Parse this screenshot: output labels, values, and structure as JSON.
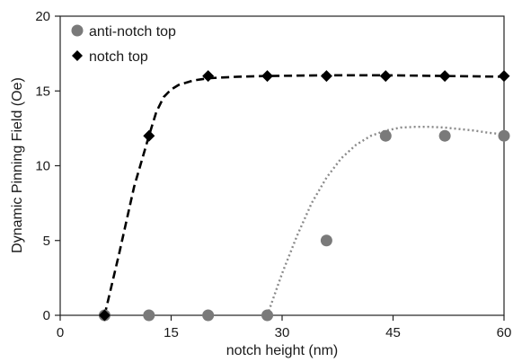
{
  "chart_data": {
    "type": "scatter",
    "title": "",
    "xlabel": "notch height (nm)",
    "ylabel": "Dynamic Pinning Field (Oe)",
    "xlim": [
      0,
      60
    ],
    "ylim": [
      0,
      20
    ],
    "x_ticks": [
      0,
      15,
      30,
      45,
      60
    ],
    "y_ticks": [
      0,
      5,
      10,
      15,
      20
    ],
    "grid": false,
    "legend_position": "top-left",
    "series": [
      {
        "name": "anti-notch top",
        "marker": "circle",
        "color": "#7a7a7a",
        "points": [
          [
            6,
            0
          ],
          [
            12,
            0
          ],
          [
            20,
            0
          ],
          [
            28,
            0
          ],
          [
            36,
            5
          ],
          [
            44,
            12
          ],
          [
            52,
            12
          ],
          [
            60,
            12
          ]
        ],
        "fit_line": {
          "style": "dotted",
          "color": "#8a8a8a",
          "points": [
            [
              28,
              0
            ],
            [
              30,
              2.8
            ],
            [
              32,
              5.3
            ],
            [
              34,
              7.5
            ],
            [
              36,
              9.2
            ],
            [
              38,
              10.5
            ],
            [
              40,
              11.4
            ],
            [
              42,
              12.0
            ],
            [
              44,
              12.35
            ],
            [
              46,
              12.55
            ],
            [
              48,
              12.6
            ],
            [
              50,
              12.6
            ],
            [
              52,
              12.55
            ],
            [
              54,
              12.45
            ],
            [
              56,
              12.35
            ],
            [
              58,
              12.2
            ],
            [
              60,
              12.1
            ]
          ]
        }
      },
      {
        "name": "notch top",
        "marker": "diamond",
        "color": "#000000",
        "points": [
          [
            6,
            0
          ],
          [
            12,
            12
          ],
          [
            20,
            16
          ],
          [
            28,
            16
          ],
          [
            36,
            16
          ],
          [
            44,
            16
          ],
          [
            52,
            16
          ],
          [
            60,
            16
          ]
        ],
        "fit_line": {
          "style": "dashed",
          "color": "#000000",
          "points": [
            [
              6,
              0
            ],
            [
              8,
              4.2
            ],
            [
              10,
              8.6
            ],
            [
              12,
              12.0
            ],
            [
              13,
              13.6
            ],
            [
              14,
              14.6
            ],
            [
              15,
              15.1
            ],
            [
              16,
              15.4
            ],
            [
              18,
              15.7
            ],
            [
              20,
              15.85
            ],
            [
              24,
              15.95
            ],
            [
              28,
              16.0
            ],
            [
              36,
              16.05
            ],
            [
              44,
              16.05
            ],
            [
              52,
              16.0
            ],
            [
              60,
              15.95
            ]
          ]
        }
      }
    ]
  }
}
